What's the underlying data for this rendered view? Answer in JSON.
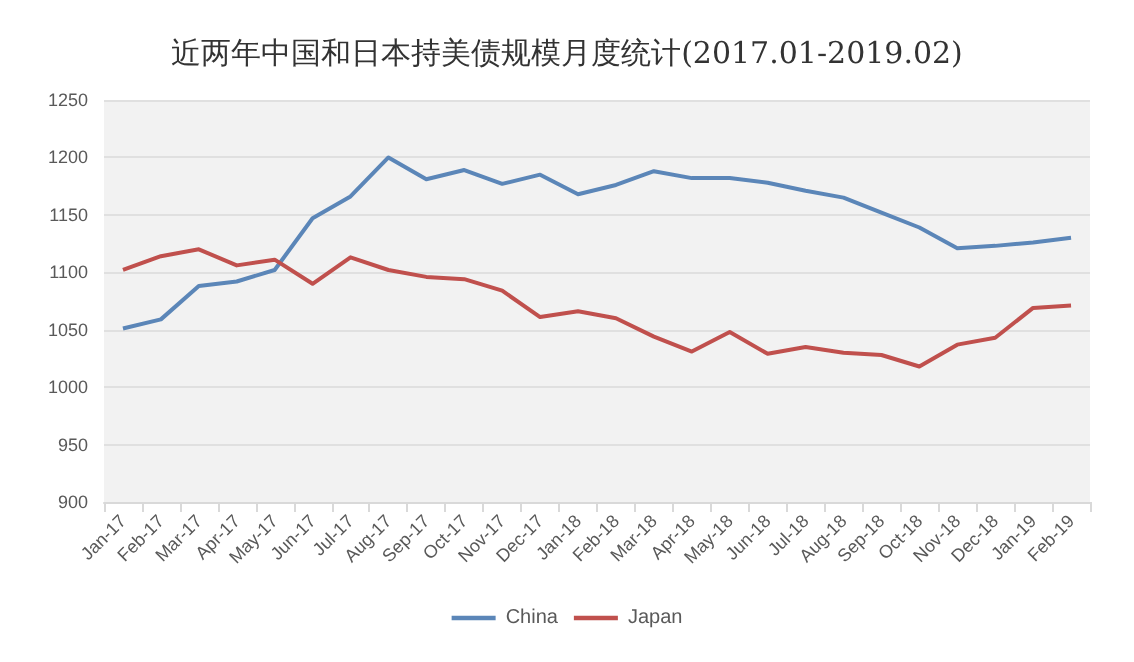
{
  "chart_data": {
    "type": "line",
    "title": "近两年中国和日本持美债规模月度统计(2017.01-2019.02)",
    "categories": [
      "Jan-17",
      "Feb-17",
      "Mar-17",
      "Apr-17",
      "May-17",
      "Jun-17",
      "Jul-17",
      "Aug-17",
      "Sep-17",
      "Oct-17",
      "Nov-17",
      "Dec-17",
      "Jan-18",
      "Feb-18",
      "Mar-18",
      "Apr-18",
      "May-18",
      "Jun-18",
      "Jul-18",
      "Aug-18",
      "Sep-18",
      "Oct-18",
      "Nov-18",
      "Dec-18",
      "Jan-19",
      "Feb-19"
    ],
    "series": [
      {
        "name": "China",
        "color": "#5b86b8",
        "values": [
          1051,
          1059,
          1088,
          1092,
          1102,
          1147,
          1166,
          1200,
          1181,
          1189,
          1177,
          1185,
          1168,
          1176,
          1188,
          1182,
          1182,
          1178,
          1171,
          1165,
          1152,
          1139,
          1121,
          1123,
          1126,
          1130
        ]
      },
      {
        "name": "Japan",
        "color": "#c0504d",
        "values": [
          1102,
          1114,
          1120,
          1106,
          1111,
          1090,
          1113,
          1102,
          1096,
          1094,
          1084,
          1061,
          1066,
          1060,
          1044,
          1031,
          1048,
          1029,
          1035,
          1030,
          1028,
          1018,
          1037,
          1043,
          1069,
          1071
        ]
      }
    ],
    "ylim": [
      900,
      1250
    ],
    "yticks": [
      900,
      950,
      1000,
      1050,
      1100,
      1150,
      1200,
      1250
    ],
    "grid": "y",
    "legend": "bottom",
    "marker": "none",
    "line_style": "solid"
  }
}
